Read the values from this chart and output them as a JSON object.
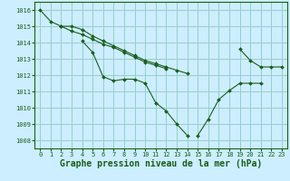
{
  "background_color": "#cceeff",
  "grid_color": "#99cccc",
  "line_color": "#1a5e1a",
  "marker_color": "#1a5e1a",
  "xlabel": "Graphe pression niveau de la mer (hPa)",
  "xlabel_fontsize": 7,
  "ylim": [
    1007.5,
    1016.5
  ],
  "xlim": [
    -0.5,
    23.5
  ],
  "yticks": [
    1008,
    1009,
    1010,
    1011,
    1012,
    1013,
    1014,
    1015,
    1016
  ],
  "xticks": [
    0,
    1,
    2,
    3,
    4,
    5,
    6,
    7,
    8,
    9,
    10,
    11,
    12,
    13,
    14,
    15,
    16,
    17,
    18,
    19,
    20,
    21,
    22,
    23
  ],
  "series": [
    [
      1016.0,
      1015.3,
      1015.0,
      1015.0,
      1014.8,
      1014.4,
      1014.1,
      1013.8,
      1013.5,
      1013.2,
      1012.9,
      1012.7,
      1012.5,
      1012.3,
      1012.1,
      null,
      null,
      null,
      null,
      null,
      null,
      null,
      null,
      null
    ],
    [
      null,
      null,
      1015.0,
      1014.7,
      1014.5,
      1014.2,
      1013.9,
      1013.7,
      1013.4,
      1013.1,
      1012.8,
      1012.6,
      1012.4,
      null,
      null,
      null,
      null,
      null,
      null,
      1013.6,
      1012.9,
      1012.5,
      1012.5,
      1012.5
    ],
    [
      null,
      null,
      null,
      null,
      1014.1,
      1013.4,
      1011.9,
      1011.65,
      1011.75,
      1011.75,
      1011.5,
      1010.3,
      1009.8,
      1009.0,
      1008.3,
      null,
      null,
      null,
      null,
      null,
      null,
      null,
      null,
      null
    ],
    [
      null,
      null,
      null,
      null,
      null,
      null,
      null,
      null,
      null,
      null,
      null,
      null,
      null,
      null,
      null,
      1008.3,
      1009.3,
      1010.5,
      1011.05,
      1011.5,
      1011.5,
      1011.5,
      null,
      null
    ]
  ]
}
